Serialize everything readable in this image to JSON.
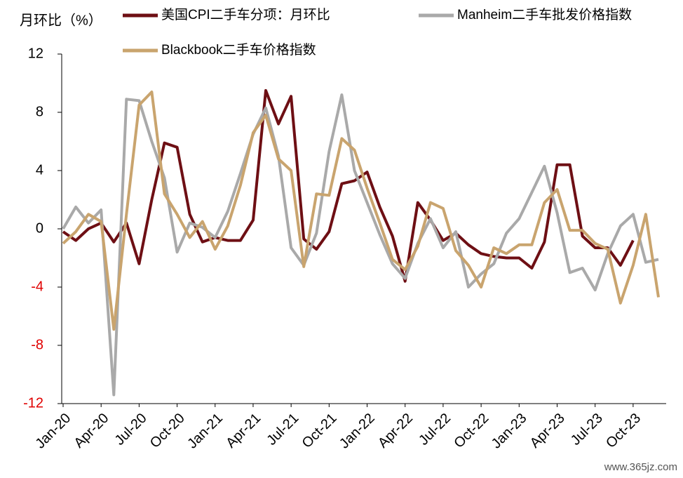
{
  "chart_data": {
    "type": "line",
    "y_axis_label": "月环比（%）",
    "categories": [
      "Jan-20",
      null,
      null,
      "Apr-20",
      null,
      null,
      "Jul-20",
      null,
      null,
      "Oct-20",
      null,
      null,
      "Jan-21",
      null,
      null,
      "Apr-21",
      null,
      null,
      "Jul-21",
      null,
      null,
      "Oct-21",
      null,
      null,
      "Jan-22",
      null,
      null,
      "Apr-22",
      null,
      null,
      "Jul-22",
      null,
      null,
      "Oct-22",
      null,
      null,
      "Jan-23",
      null,
      null,
      "Apr-23",
      null,
      null,
      "Jul-23",
      null,
      null,
      "Oct-23",
      null,
      null
    ],
    "series": [
      {
        "name": "美国CPI二手车分项：月环比",
        "color": "#6e0f14",
        "values": [
          -0.2,
          -0.8,
          0.0,
          0.4,
          -0.9,
          0.4,
          -2.4,
          2.0,
          5.9,
          5.6,
          1.0,
          -0.9,
          -0.6,
          -0.8,
          -0.8,
          0.6,
          9.5,
          7.2,
          9.1,
          -0.7,
          -1.4,
          -0.2,
          3.1,
          3.3,
          3.9,
          1.5,
          -0.5,
          -3.6,
          1.8,
          0.6,
          -0.8,
          -0.3,
          -1.1,
          -1.7,
          -1.9,
          -2.0,
          -2.0,
          -2.7,
          -0.9,
          4.4,
          4.4,
          -0.5,
          -1.3,
          -1.3,
          -2.5,
          -0.8,
          null,
          null
        ]
      },
      {
        "name": "Manheim二手车批发价格指数",
        "color": "#a9a9a9",
        "values": [
          0.0,
          1.5,
          0.4,
          1.3,
          -11.4,
          8.9,
          8.8,
          6.0,
          3.5,
          -1.6,
          0.4,
          0.1,
          -0.6,
          1.2,
          3.8,
          6.5,
          8.3,
          5.0,
          -1.3,
          -2.5,
          -0.3,
          5.3,
          9.2,
          4.0,
          1.8,
          -0.4,
          -2.4,
          -3.4,
          -1.0,
          0.7,
          -1.3,
          -0.2,
          -4.0,
          -3.1,
          -2.4,
          -0.3,
          0.7,
          2.5,
          4.3,
          1.1,
          -3.0,
          -2.7,
          -4.2,
          -1.7,
          0.2,
          1.0,
          -2.3,
          -2.1
        ]
      },
      {
        "name": "Blackbook二手车价格指数",
        "color": "#c9a46e",
        "values": [
          -1.0,
          -0.2,
          1.0,
          0.5,
          -6.9,
          1.0,
          8.5,
          9.4,
          2.4,
          1.0,
          -0.6,
          0.5,
          -1.4,
          0.2,
          3.0,
          6.6,
          7.8,
          4.8,
          4.0,
          -2.6,
          2.4,
          2.3,
          6.2,
          5.4,
          2.8,
          0.4,
          -2.1,
          -2.8,
          -1.2,
          1.8,
          1.4,
          -1.5,
          -2.5,
          -4.0,
          -1.3,
          -1.7,
          -1.1,
          -1.1,
          1.8,
          2.7,
          -0.1,
          -0.1,
          -1.0,
          -1.4,
          -5.1,
          -2.5,
          1.0,
          -4.7
        ]
      }
    ],
    "ylim": [
      -12,
      12
    ],
    "yticks": [
      -12,
      -8,
      -4,
      0,
      4,
      8,
      12
    ],
    "negative_tick_color": "#e00000",
    "legend": "top",
    "watermark": "www.365jz.com"
  }
}
